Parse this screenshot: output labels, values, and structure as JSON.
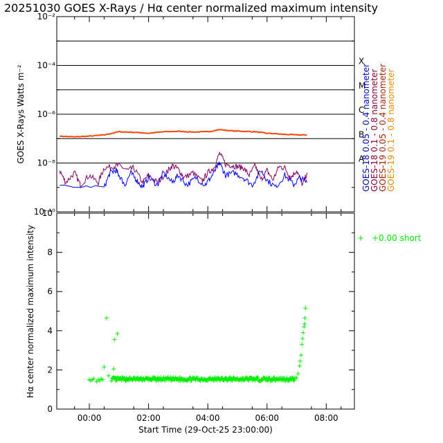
{
  "chart_data": [
    {
      "type": "line",
      "panel": "goes",
      "title": "20251030 GOES X-Rays / Hα center normalized maximum intensity",
      "ylabel": "GOES X-Rays Watts m⁻²",
      "yscale": "log",
      "ylim_exp": [
        -10,
        -2
      ],
      "y_tick_labels": [
        {
          "exp": -10,
          "text": "10⁻¹⁰"
        },
        {
          "exp": -8,
          "text": "10⁻⁸"
        },
        {
          "exp": -6,
          "text": "10⁻⁶"
        },
        {
          "exp": -4,
          "text": "10⁻⁴"
        },
        {
          "exp": -2,
          "text": "10⁻²"
        }
      ],
      "xlim_hours": [
        -1.1,
        8.95
      ],
      "flare_class_lines_exp": [
        -3,
        -4,
        -5,
        -6,
        -7,
        -8
      ],
      "flare_classes": [
        {
          "label": "X",
          "exp": -4
        },
        {
          "label": "M",
          "exp": -5
        },
        {
          "label": "C",
          "exp": -6
        },
        {
          "label": "B",
          "exp": -7
        },
        {
          "label": "A",
          "exp": -8
        }
      ],
      "legend": [
        {
          "text": "GOES-18 0.05 - 0.4 nanometer",
          "color": "#0000cc"
        },
        {
          "text": "GOES-18 0.1 - 0.8 nanometer",
          "color": "#880033"
        },
        {
          "text": "GOES-19 0.05 - 0.4 nanometer",
          "color": "#aa2200"
        },
        {
          "text": "GOES-19 0.1 - 0.8 nanometer",
          "color": "#e68a00"
        }
      ],
      "series": [
        {
          "name": "GOES-19 0.1 - 0.8 nanometer",
          "color": "#ff4400",
          "x_hours": [
            -1.0,
            -0.5,
            0.0,
            0.5,
            1.0,
            1.5,
            2.0,
            2.5,
            3.0,
            3.5,
            4.0,
            4.4,
            4.8,
            5.2,
            5.6,
            6.0,
            6.5,
            7.0,
            7.35
          ],
          "log_y": [
            -6.9,
            -6.93,
            -6.9,
            -6.85,
            -6.72,
            -6.74,
            -6.78,
            -6.72,
            -6.7,
            -6.73,
            -6.72,
            -6.63,
            -6.68,
            -6.7,
            -6.72,
            -6.78,
            -6.82,
            -6.85,
            -6.85
          ]
        },
        {
          "name": "GOES-18 0.1 - 0.8 nanometer",
          "color": "#880066",
          "x_hours": [
            -1.0,
            -0.8,
            -0.5,
            -0.3,
            0.0,
            0.3,
            0.5,
            0.8,
            1.0,
            1.3,
            1.5,
            1.8,
            2.0,
            2.3,
            2.6,
            2.8,
            3.0,
            3.2,
            3.5,
            3.8,
            4.0,
            4.2,
            4.4,
            4.6,
            4.8,
            5.0,
            5.2,
            5.4,
            5.6,
            5.8,
            6.0,
            6.2,
            6.4,
            6.6,
            6.8,
            7.0,
            7.2,
            7.35
          ],
          "log_y": [
            -8.3,
            -8.8,
            -8.4,
            -8.9,
            -8.5,
            -8.8,
            -8.2,
            -8.15,
            -8.1,
            -8.3,
            -8.2,
            -8.8,
            -8.5,
            -8.8,
            -8.4,
            -8.1,
            -8.25,
            -8.6,
            -8.4,
            -8.75,
            -8.4,
            -8.2,
            -7.6,
            -8.05,
            -8.1,
            -8.15,
            -8.2,
            -8.5,
            -8.1,
            -8.7,
            -8.3,
            -8.7,
            -8.15,
            -8.2,
            -8.6,
            -8.3,
            -8.9,
            -8.4
          ]
        },
        {
          "name": "GOES-18 0.05 - 0.4 nanometer",
          "color": "#0000ff",
          "x_hours": [
            -1.0,
            0.5,
            0.7,
            0.9,
            1.0,
            1.2,
            1.4,
            1.6,
            1.8,
            2.0,
            2.3,
            2.5,
            2.8,
            3.0,
            3.3,
            3.6,
            3.9,
            4.1,
            4.3,
            4.4,
            4.6,
            4.9,
            5.2,
            5.5,
            5.8,
            6.0,
            6.3,
            6.6,
            6.9,
            7.1,
            7.35
          ],
          "log_y": [
            -9.0,
            -9.0,
            -8.4,
            -8.3,
            -8.5,
            -8.9,
            -8.4,
            -8.7,
            -9.0,
            -8.6,
            -8.9,
            -8.4,
            -8.8,
            -8.5,
            -8.9,
            -8.6,
            -8.9,
            -8.6,
            -8.2,
            -8.0,
            -8.5,
            -8.4,
            -8.6,
            -8.9,
            -8.3,
            -8.7,
            -9.0,
            -8.5,
            -8.9,
            -8.6,
            -8.8
          ]
        }
      ]
    },
    {
      "type": "scatter",
      "panel": "halpha",
      "ylabel": "Hα center normalized maximum intensity",
      "xlabel": "Start Time (29-Oct-25 23:00:00)",
      "ylim": [
        0,
        10
      ],
      "y_ticks": [
        0,
        2,
        4,
        6,
        8,
        10
      ],
      "xlim_hours": [
        -1.1,
        8.95
      ],
      "x_ticks": [
        {
          "hour": 0,
          "label": "00:00"
        },
        {
          "hour": 2,
          "label": "02:00"
        },
        {
          "hour": 4,
          "label": "04:00"
        },
        {
          "hour": 6,
          "label": "06:00"
        },
        {
          "hour": 8,
          "label": "08:00"
        }
      ],
      "marker": "+",
      "color": "#00ee00",
      "legend": {
        "symbol": "+",
        "text": "+0.00 short"
      },
      "baseline": {
        "x_start": 0.75,
        "x_end": 6.95,
        "y": 1.53
      },
      "points": {
        "x": [
          0.0,
          0.05,
          0.1,
          0.15,
          0.25,
          0.3,
          0.35,
          0.4,
          0.45,
          0.5,
          0.58,
          0.65,
          0.82,
          0.85,
          0.9,
          0.95,
          7.0,
          7.05,
          7.1,
          7.12,
          7.15,
          7.18,
          7.2,
          7.22,
          7.25,
          7.27,
          7.28,
          7.3
        ],
        "y": [
          1.5,
          1.45,
          1.5,
          1.55,
          1.4,
          1.5,
          1.45,
          1.55,
          1.5,
          2.15,
          4.65,
          1.7,
          2.05,
          3.55,
          1.45,
          3.85,
          1.6,
          1.8,
          2.2,
          2.45,
          2.75,
          3.3,
          3.6,
          3.9,
          4.2,
          4.35,
          4.65,
          5.15
        ]
      }
    }
  ]
}
